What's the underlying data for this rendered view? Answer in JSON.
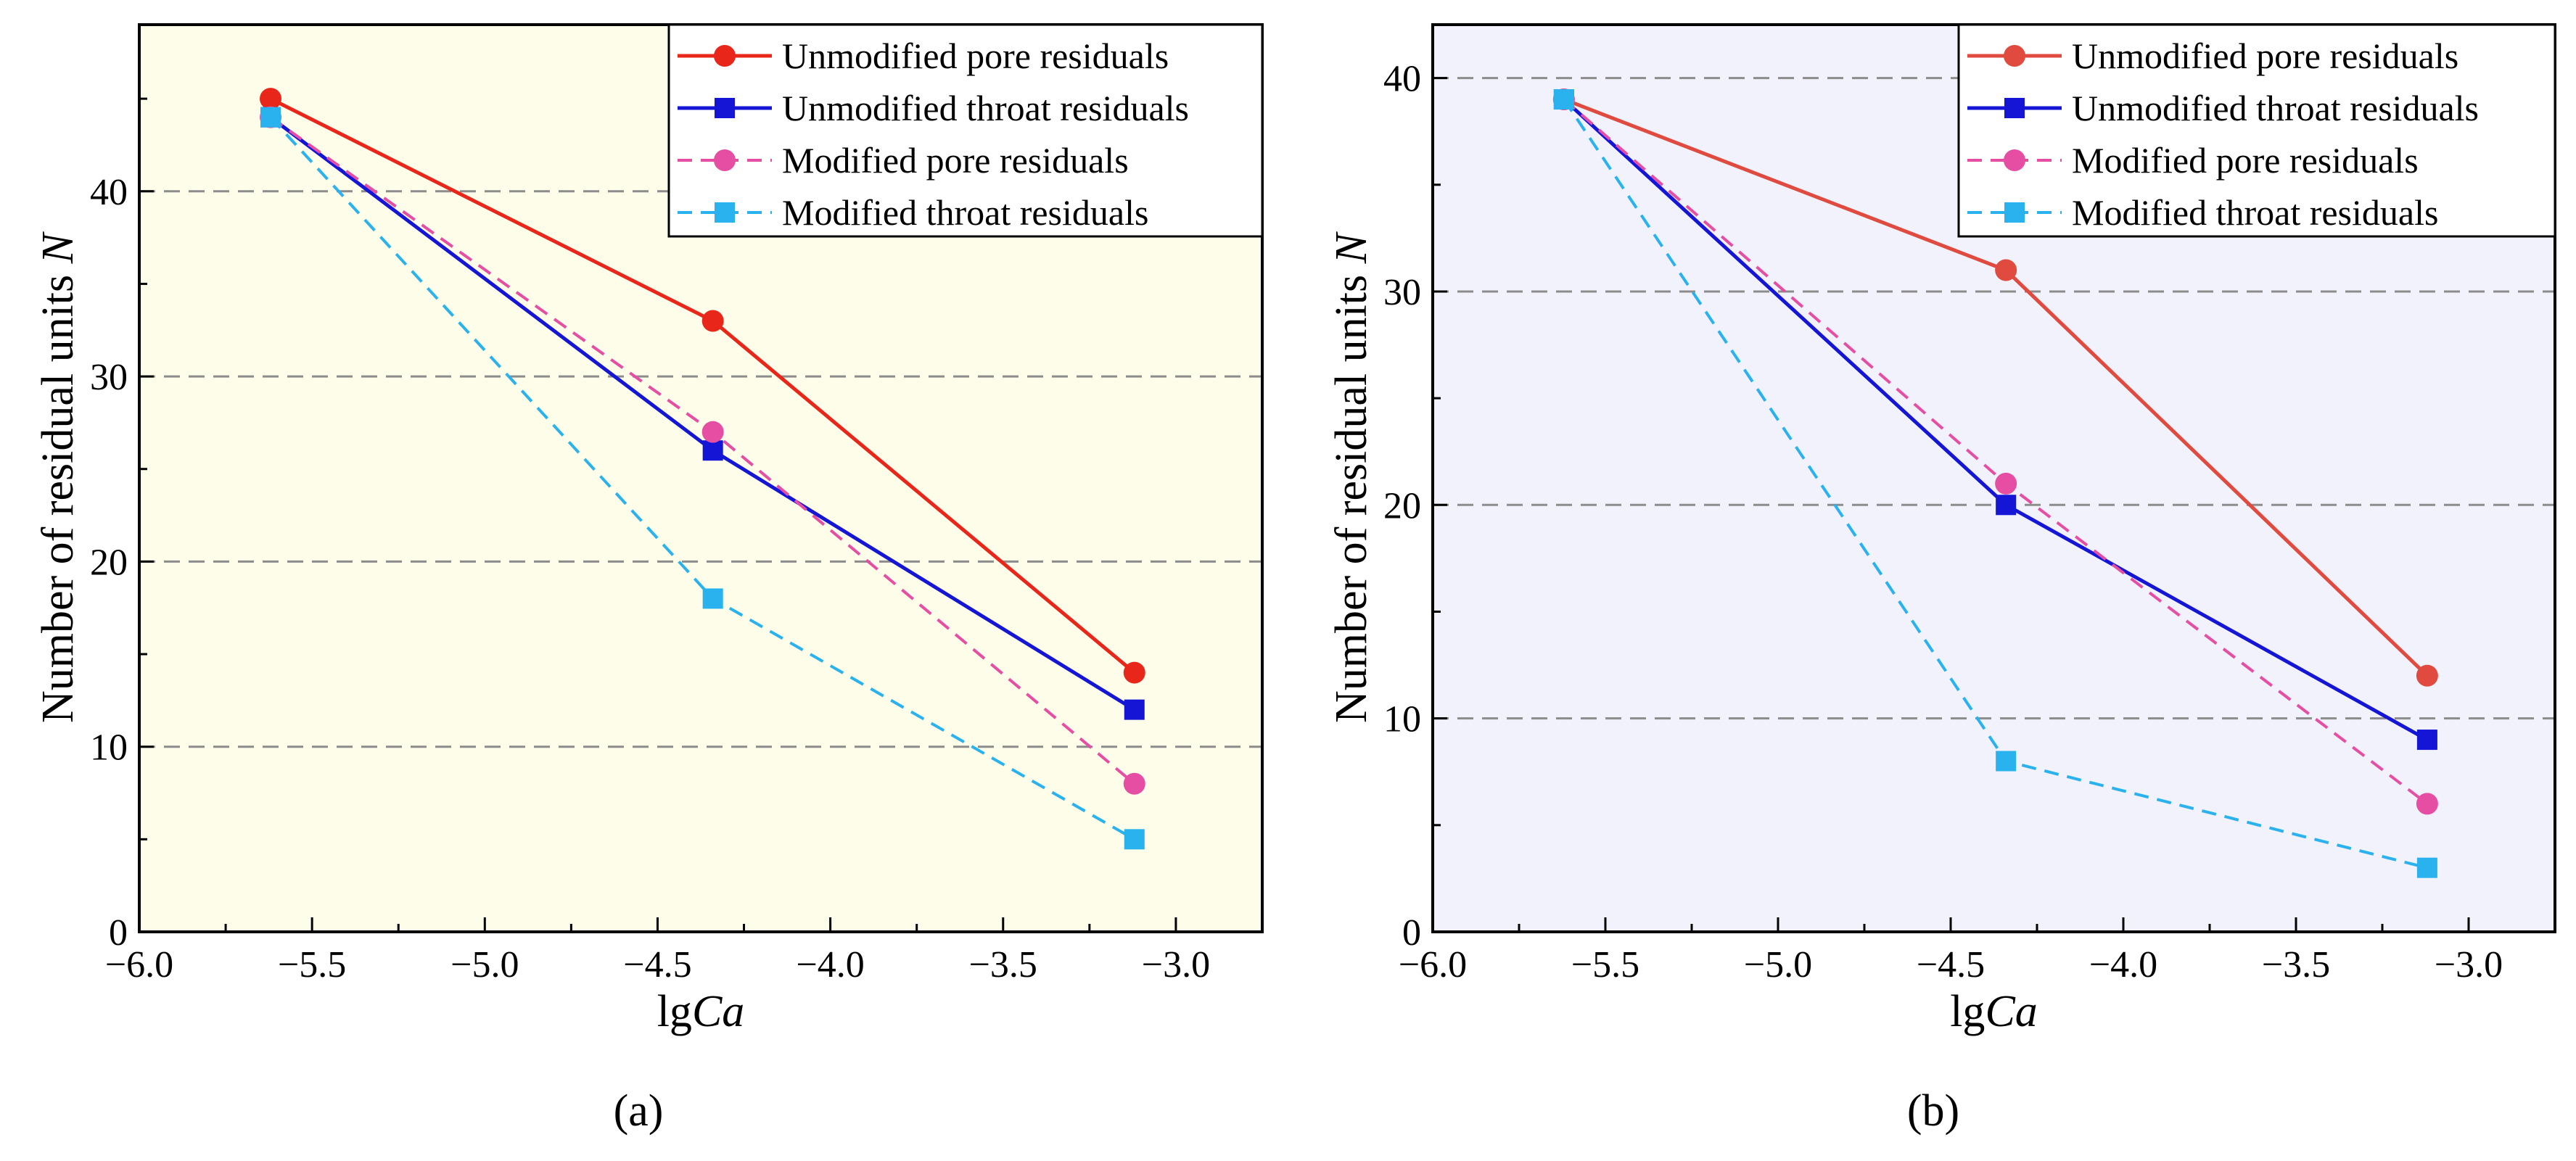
{
  "figure": {
    "panel_labels": [
      "(a)",
      "(b)"
    ]
  },
  "colors": {
    "unmodified_pore": "#e8261a",
    "unmodified_pore_b": "#e04a3f",
    "unmodified_throat": "#1515d6",
    "modified_pore": "#e64ea4",
    "modified_throat": "#2ab2ee",
    "panel_a_bg": "#fdfde9",
    "panel_b_bg": "#f2f2fc",
    "grid": "#8c8c8c"
  },
  "chart_data": [
    {
      "type": "line",
      "panel": "(a)",
      "xlabel": "lgCa",
      "ylabel": "Number of residual units N",
      "x_ticks": [
        "−6.0",
        "−5.5",
        "−5.0",
        "−4.5",
        "−4.0",
        "−3.5",
        "−3.0"
      ],
      "y_ticks": [
        "0",
        "10",
        "20",
        "30",
        "40"
      ],
      "xlim": [
        -6.0,
        -2.75
      ],
      "ylim": [
        0,
        49
      ],
      "grid": "horizontal dashed",
      "legend_position": "top-right",
      "x": [
        -5.62,
        -4.34,
        -3.12
      ],
      "series": [
        {
          "name": "Unmodified pore residuals",
          "values": [
            45,
            33,
            14
          ],
          "marker": "circle",
          "dash": "solid"
        },
        {
          "name": "Unmodified throat residuals",
          "values": [
            44,
            26,
            12
          ],
          "marker": "square",
          "dash": "solid"
        },
        {
          "name": "Modified pore residuals",
          "values": [
            44,
            27,
            8
          ],
          "marker": "circle",
          "dash": "dashed"
        },
        {
          "name": "Modified throat residuals",
          "values": [
            44,
            18,
            5
          ],
          "marker": "square",
          "dash": "dashed"
        }
      ]
    },
    {
      "type": "line",
      "panel": "(b)",
      "xlabel": "lgCa",
      "ylabel": "Number of residual units N",
      "x_ticks": [
        "−6.0",
        "−5.5",
        "−5.0",
        "−4.5",
        "−4.0",
        "−3.5",
        "−3.0"
      ],
      "y_ticks": [
        "0",
        "10",
        "20",
        "30",
        "40"
      ],
      "xlim": [
        -6.0,
        -2.75
      ],
      "ylim": [
        0,
        42.5
      ],
      "grid": "horizontal dashed",
      "legend_position": "top-right",
      "x": [
        -5.62,
        -4.34,
        -3.12
      ],
      "series": [
        {
          "name": "Unmodified pore residuals",
          "values": [
            39,
            31,
            12
          ],
          "marker": "circle",
          "dash": "solid"
        },
        {
          "name": "Unmodified throat residuals",
          "values": [
            39,
            20,
            9
          ],
          "marker": "square",
          "dash": "solid"
        },
        {
          "name": "Modified pore residuals",
          "values": [
            39,
            21,
            6
          ],
          "marker": "circle",
          "dash": "dashed"
        },
        {
          "name": "Modified throat residuals",
          "values": [
            39,
            8,
            3
          ],
          "marker": "square",
          "dash": "dashed"
        }
      ]
    }
  ]
}
